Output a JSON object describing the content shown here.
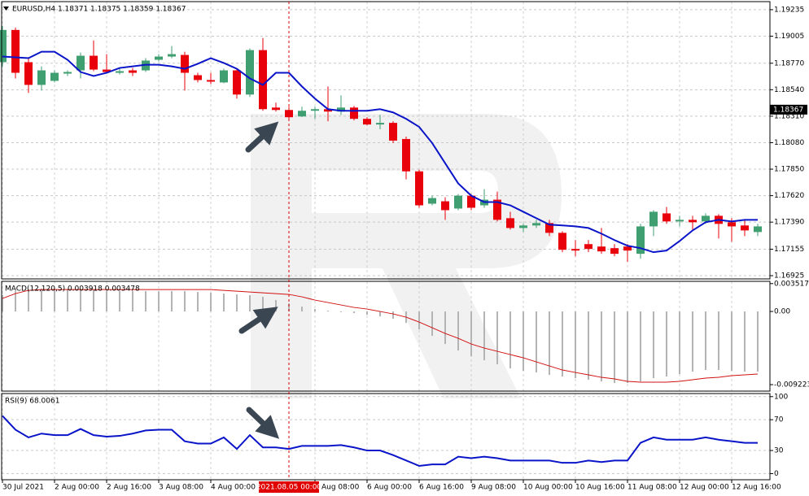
{
  "chart_data": [
    {
      "type": "candlestick",
      "title": "EURUSD,H4  1.18371 1.18375 1.18359 1.18367",
      "categories": [
        "30 Jul 2021",
        null,
        null,
        null,
        "2 Aug 00:00",
        null,
        null,
        null,
        "2 Aug 16:00",
        null,
        null,
        null,
        "3 Aug 08:00",
        null,
        null,
        null,
        "4 Aug 00:00",
        null,
        null,
        null,
        null,
        null,
        "2021.08.05 00:00",
        null,
        "Aug 08:00",
        null,
        null,
        null,
        "6 Aug 00:00",
        null,
        null,
        null,
        "6 Aug 16:00",
        null,
        null,
        null,
        "9 Aug 08:00",
        null,
        null,
        null,
        "10 Aug 00:00",
        null,
        null,
        null,
        "10 Aug 16:00",
        null,
        null,
        null,
        "11 Aug 08:00",
        null,
        null,
        null,
        "12 Aug 00:00",
        null,
        null,
        null,
        "12 Aug 16:00",
        null,
        null
      ],
      "open": [
        1.18779,
        1.19059,
        1.18779,
        1.18582,
        1.18617,
        1.1868,
        1.18708,
        1.18835,
        1.18715,
        1.18687,
        1.18708,
        1.18708,
        1.188,
        1.18828,
        1.18842,
        1.18666,
        1.18624,
        1.18603,
        1.18708,
        1.18498,
        1.18884,
        1.18385,
        1.18364,
        1.18308,
        1.18357,
        1.18371,
        1.1835,
        1.18385,
        1.18287,
        1.18238,
        1.18252,
        1.18112,
        1.17831,
        1.1755,
        1.17571,
        1.17508,
        1.1762,
        1.17536,
        1.17585,
        1.17424,
        1.17339,
        1.17361,
        1.17382,
        1.17297,
        1.17157,
        1.17199,
        1.17178,
        1.17164,
        1.17178,
        1.17115,
        1.17353,
        1.17466,
        1.17396,
        1.1741,
        1.17396,
        1.17445,
        1.17389,
        1.17361,
        1.17304
      ],
      "high": [
        1.19094,
        1.1908,
        1.18814,
        1.18743,
        1.18708,
        1.18708,
        1.18863,
        1.18968,
        1.18849,
        1.18722,
        1.18729,
        1.18814,
        1.18849,
        1.18919,
        1.1887,
        1.18687,
        1.18687,
        1.18722,
        1.18722,
        1.18898,
        1.18989,
        1.18428,
        1.18392,
        1.18392,
        1.18392,
        1.18568,
        1.18491,
        1.18399,
        1.18301,
        1.18322,
        1.18266,
        1.18133,
        1.17845,
        1.1762,
        1.17606,
        1.17634,
        1.17634,
        1.17676,
        1.17655,
        1.1748,
        1.17375,
        1.1741,
        1.1741,
        1.17311,
        1.17234,
        1.17234,
        1.17339,
        1.17199,
        1.17199,
        1.17375,
        1.17494,
        1.17522,
        1.17445,
        1.17445,
        1.17466,
        1.17459,
        1.17424,
        1.1741,
        1.17375
      ],
      "low": [
        1.18743,
        1.18638,
        1.18512,
        1.18533,
        1.18603,
        1.18659,
        1.18638,
        1.18701,
        1.18687,
        1.18673,
        1.18659,
        1.18694,
        1.18786,
        1.18814,
        1.18533,
        1.18603,
        1.18589,
        1.18596,
        1.18463,
        1.18477,
        1.18357,
        1.1835,
        1.18287,
        1.18301,
        1.18287,
        1.18266,
        1.18322,
        1.18273,
        1.18231,
        1.18196,
        1.18077,
        1.17761,
        1.17515,
        1.17536,
        1.1741,
        1.17494,
        1.17494,
        1.17515,
        1.17396,
        1.17325,
        1.17304,
        1.17339,
        1.17269,
        1.17129,
        1.17094,
        1.17129,
        1.17115,
        1.17094,
        1.17045,
        1.17073,
        1.17269,
        1.17375,
        1.17353,
        1.17325,
        1.17375,
        1.17248,
        1.1722,
        1.17269,
        1.17269
      ],
      "close": [
        1.19059,
        1.18687,
        1.18582,
        1.18708,
        1.18687,
        1.18694,
        1.18835,
        1.18715,
        1.18694,
        1.18701,
        1.18687,
        1.18793,
        1.18828,
        1.18849,
        1.18687,
        1.18624,
        1.1861,
        1.18708,
        1.18498,
        1.18884,
        1.18371,
        1.18364,
        1.18301,
        1.18357,
        1.18371,
        1.1835,
        1.18385,
        1.18287,
        1.18238,
        1.18252,
        1.18098,
        1.17831,
        1.17536,
        1.17599,
        1.17494,
        1.1762,
        1.17515,
        1.17585,
        1.1741,
        1.17339,
        1.17361,
        1.17382,
        1.17297,
        1.1715,
        1.17143,
        1.17157,
        1.17136,
        1.17115,
        1.17143,
        1.17353,
        1.1748,
        1.17396,
        1.1741,
        1.17389,
        1.17445,
        1.17375,
        1.17353,
        1.17318,
        1.17353
      ],
      "up_color": "#3f9f70",
      "down_color": "#e8000b",
      "overlay": {
        "color": "#0a14c8",
        "values": [
          1.18828,
          1.18821,
          1.18814,
          1.1887,
          1.1887,
          1.188,
          1.18694,
          1.18659,
          1.18687,
          1.18729,
          1.18743,
          1.18757,
          1.18757,
          1.18743,
          1.18722,
          1.18765,
          1.18814,
          1.18772,
          1.18722,
          1.18638,
          1.18582,
          1.18687,
          1.18687,
          1.18568,
          1.18463,
          1.18371,
          1.18357,
          1.18357,
          1.18357,
          1.18371,
          1.18343,
          1.18287,
          1.18217,
          1.18077,
          1.17901,
          1.17726,
          1.1762,
          1.17564,
          1.17564,
          1.17536,
          1.1748,
          1.17424,
          1.17368,
          1.17361,
          1.17353,
          1.17339,
          1.1729,
          1.17234,
          1.17185,
          1.17164,
          1.17129,
          1.17143,
          1.17226,
          1.17318,
          1.17389,
          1.1741,
          1.17396,
          1.1741,
          1.1741
        ]
      },
      "last_price": 1.18367,
      "cursor_index": 22,
      "cursor_color": "#e00000",
      "ylim": [
        1.16897,
        1.19305
      ],
      "yticks": [
        1.19235,
        1.19005,
        {
          "value": 1.1877,
          "label": "1.18770"
        },
        {
          "value": 1.1854,
          "label": "1.18540"
        },
        {
          "value": 1.1831,
          "label": "1.18310"
        },
        {
          "value": 1.1808,
          "label": "1.18080"
        },
        {
          "value": 1.1785,
          "label": "1.17850"
        },
        {
          "value": 1.1762,
          "label": "1.17620"
        },
        {
          "value": 1.1739,
          "label": "1.17390"
        },
        1.17155,
        1.16925
      ],
      "grid": true
    },
    {
      "type": "macd",
      "title": "MACD(12,120,5) 0.003918 0.003478",
      "histogram": {
        "color": "#b4b4b4",
        "values": [
          0.00205,
          0.002563,
          0.002768,
          0.00287,
          0.00287,
          0.00287,
          0.002768,
          0.002665,
          0.002563,
          0.002563,
          0.002563,
          0.002563,
          0.002563,
          0.002563,
          0.002563,
          0.00246,
          0.002358,
          0.002255,
          0.002153,
          0.00205,
          0.001845,
          0.001435,
          0.001025,
          0.000615,
          0.000308,
          0.000103,
          -0.000103,
          -0.000205,
          -0.00041,
          -0.000615,
          -0.000923,
          -0.001435,
          -0.002255,
          -0.003075,
          -0.0041,
          -0.00492,
          -0.005638,
          -0.00615,
          -0.006663,
          -0.007175,
          -0.007483,
          -0.007688,
          -0.007995,
          -0.0082,
          -0.008405,
          -0.00861,
          -0.008815,
          -0.00902,
          -0.00902,
          -0.008815,
          -0.008405,
          -0.0082,
          -0.007893,
          -0.007585,
          -0.00738,
          -0.00738,
          -0.007483,
          -0.007585,
          -0.007585
        ]
      },
      "signal": {
        "color": "#d21010",
        "values": [
          0.00164,
          0.002255,
          0.002665,
          0.002768,
          0.002768,
          0.002768,
          0.002768,
          0.002768,
          0.002768,
          0.002768,
          0.002768,
          0.002768,
          0.002768,
          0.002768,
          0.002768,
          0.002768,
          0.002768,
          0.002665,
          0.002563,
          0.00246,
          0.002358,
          0.002255,
          0.002153,
          0.001845,
          0.001435,
          0.001128,
          0.00082,
          0.000513,
          0.000308,
          0,
          -0.000308,
          -0.000718,
          -0.001333,
          -0.00205,
          -0.002768,
          -0.003383,
          -0.0041,
          -0.004613,
          -0.005023,
          -0.005433,
          -0.005843,
          -0.006355,
          -0.006868,
          -0.00738,
          -0.007688,
          -0.007995,
          -0.008303,
          -0.008508,
          -0.008815,
          -0.008918,
          -0.008918,
          -0.008918,
          -0.008815,
          -0.00861,
          -0.008405,
          -0.008303,
          -0.008098,
          -0.007995,
          -0.007893
        ]
      },
      "ylim": [
        -0.01004,
        0.0038
      ],
      "yticks": [
        0.003517,
        {
          "value": 0,
          "label": "0.00"
        },
        -0.009223
      ],
      "grid": false
    },
    {
      "type": "line",
      "title": "RSI(9) 68.0061",
      "color": "#0a14c8",
      "values": [
        75,
        57,
        47,
        52,
        50,
        50,
        58,
        50,
        48,
        49,
        52,
        56,
        57,
        57,
        42,
        39,
        39,
        47,
        32,
        50,
        34,
        34,
        32,
        36,
        36,
        36,
        37,
        34,
        30,
        30,
        24,
        17,
        10,
        12,
        12,
        22,
        20,
        22,
        20,
        17,
        17,
        17,
        17,
        14,
        14,
        17,
        15,
        17,
        17,
        40,
        47,
        44,
        44,
        44,
        47,
        44,
        42,
        40,
        40
      ],
      "ylim": [
        -8,
        104
      ],
      "yticks": [
        100,
        70,
        30,
        0
      ],
      "grid": true
    }
  ]
}
